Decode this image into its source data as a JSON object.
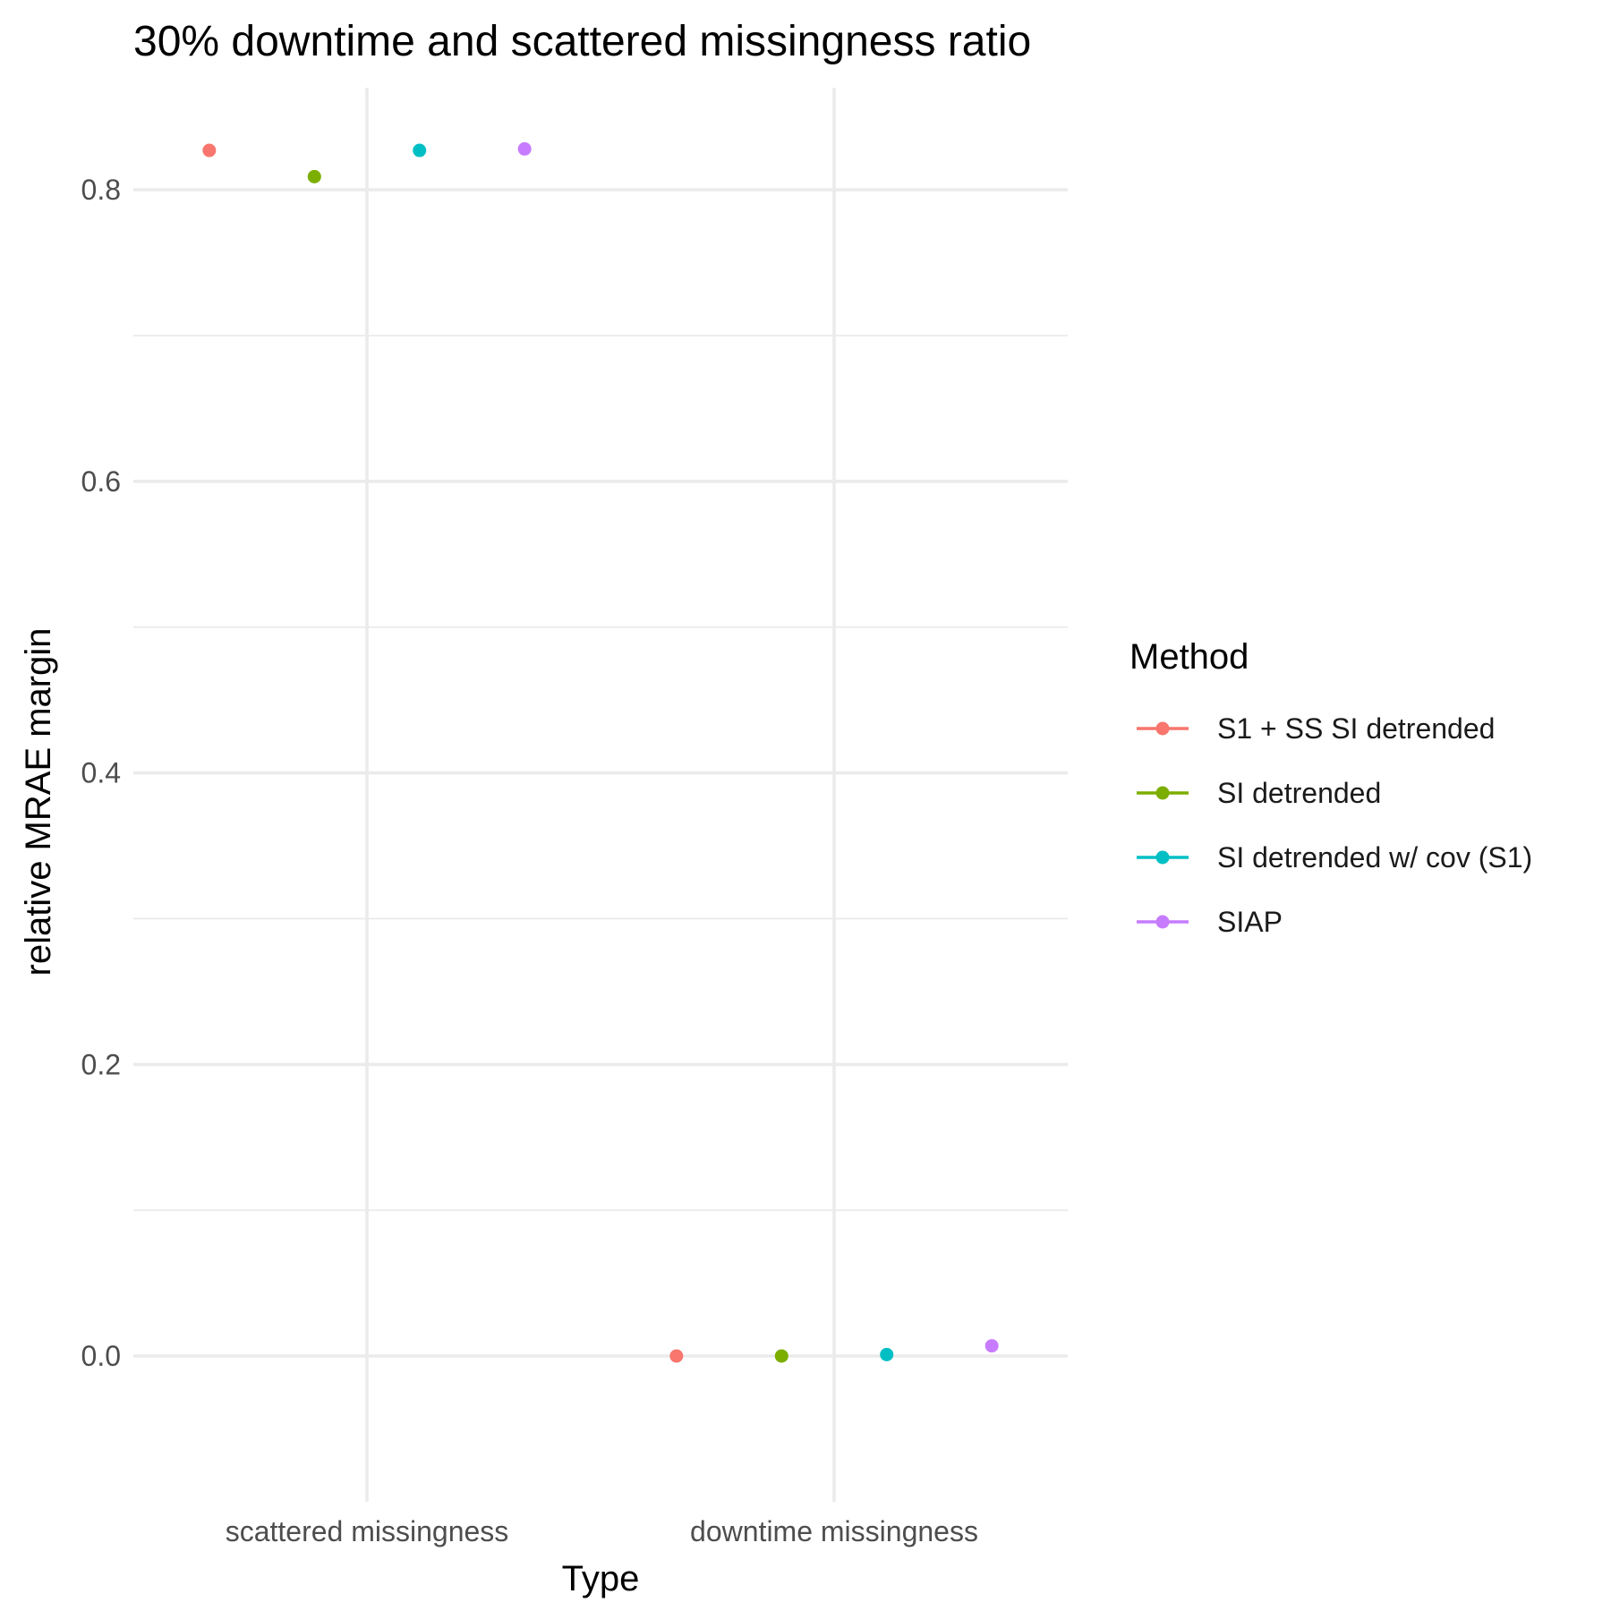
{
  "chart_data": {
    "type": "scatter",
    "title": "30% downtime and scattered missingness ratio",
    "xlabel": "Type",
    "ylabel": "relative MRAE margin",
    "categories": [
      "scattered missingness",
      "downtime missingness"
    ],
    "ylim": [
      -0.1,
      0.87
    ],
    "yticks": [
      0.0,
      0.2,
      0.4,
      0.6,
      0.8
    ],
    "ytick_labels": [
      "0.0",
      "0.2",
      "0.4",
      "0.6",
      "0.8"
    ],
    "grid": true,
    "legend": {
      "title": "Method",
      "position": "right"
    },
    "series": [
      {
        "name": "S1 + SS SI detrended",
        "color": "#F8766D",
        "values": [
          0.827,
          0.0
        ]
      },
      {
        "name": "SI detrended",
        "color": "#7CAE00",
        "values": [
          0.809,
          0.0
        ]
      },
      {
        "name": "SI detrended w/ cov (S1)",
        "color": "#00BFC4",
        "values": [
          0.827,
          0.001
        ]
      },
      {
        "name": "SIAP",
        "color": "#C77CFF",
        "values": [
          0.828,
          0.007
        ]
      }
    ]
  }
}
